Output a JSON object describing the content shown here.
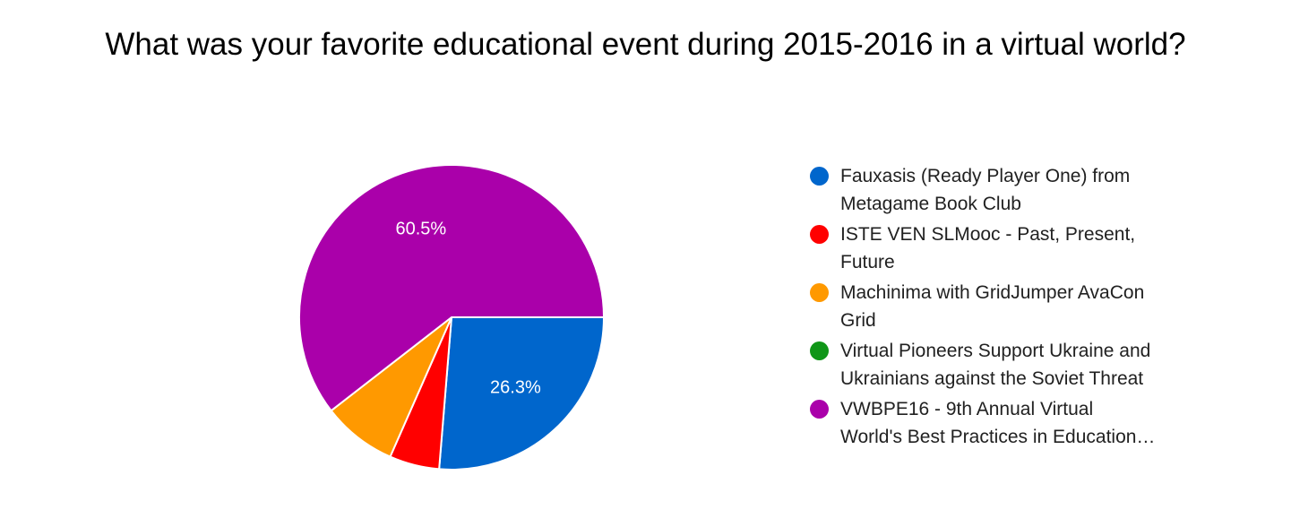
{
  "chart_data": {
    "type": "pie",
    "title": "What was your favorite educational event during 2015-2016 in a virtual world?",
    "slices": [
      {
        "label": "Fauxasis (Ready Player One) from Metagame Book Club",
        "value": 26.3,
        "color": "#0066cc",
        "data_label": "26.3%"
      },
      {
        "label": "ISTE VEN SLMooc - Past, Present, Future",
        "value": 5.3,
        "color": "#ff0000",
        "data_label": ""
      },
      {
        "label": "Machinima with GridJumper AvaCon Grid",
        "value": 7.9,
        "color": "#ff9900",
        "data_label": ""
      },
      {
        "label": "Virtual Pioneers Support Ukraine and Ukrainians against the Soviet Threat",
        "value": 0,
        "color": "#109618",
        "data_label": ""
      },
      {
        "label": "VWBPE16 - 9th Annual Virtual World's Best Practices in Education…",
        "value": 60.5,
        "color": "#aa00aa",
        "data_label": "60.5%"
      }
    ],
    "legend": {
      "position": "right",
      "entries": [
        {
          "lines": [
            "Fauxasis (Ready Player One) from",
            "Metagame Book Club"
          ],
          "color": "#0066cc"
        },
        {
          "lines": [
            "ISTE VEN SLMooc - Past, Present,",
            "Future"
          ],
          "color": "#ff0000"
        },
        {
          "lines": [
            "Machinima with GridJumper AvaCon",
            "Grid"
          ],
          "color": "#ff9900"
        },
        {
          "lines": [
            "Virtual Pioneers Support Ukraine and",
            "Ukrainians against the Soviet Threat"
          ],
          "color": "#109618"
        },
        {
          "lines": [
            "VWBPE16 - 9th Annual Virtual",
            "World's Best Practices in Education…"
          ],
          "color": "#aa00aa"
        }
      ]
    }
  }
}
